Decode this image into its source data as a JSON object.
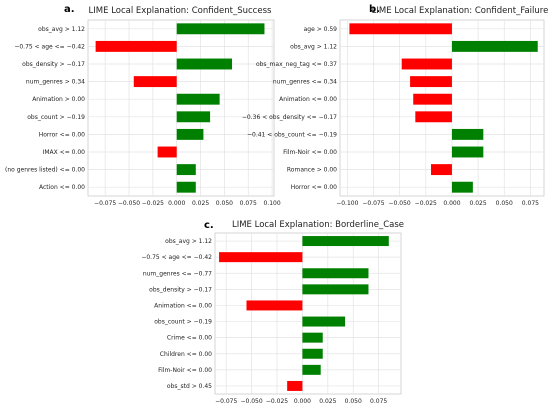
{
  "chart_data": [
    {
      "type": "bar",
      "orientation": "horizontal",
      "panel_label": "a.",
      "title": "LIME Local Explanation: Confident_Success",
      "categories": [
        "obs_avg > 1.12",
        "−0.75 < age <= −0.42",
        "obs_density > −0.17",
        "num_genres > 0.34",
        "Animation > 0.00",
        "obs_count > −0.19",
        "Horror <= 0.00",
        "IMAX <= 0.00",
        "(no genres listed) <= 0.00",
        "Action <= 0.00"
      ],
      "values": [
        0.092,
        -0.085,
        0.058,
        -0.045,
        0.045,
        0.035,
        0.028,
        -0.02,
        0.02,
        0.02
      ],
      "xticks": [
        -0.075,
        -0.05,
        -0.025,
        0.0,
        0.025,
        0.05,
        0.075,
        0.1
      ],
      "xtick_labels": [
        "−0.075",
        "−0.050",
        "−0.025",
        "0.000",
        "0.025",
        "0.050",
        "0.075",
        "0.100"
      ],
      "xlim": [
        -0.093,
        0.102
      ],
      "grid": true,
      "colors": {
        "positive": "#008000",
        "negative": "#ff0000"
      }
    },
    {
      "type": "bar",
      "orientation": "horizontal",
      "panel_label": "b.",
      "title": "LIME Local Explanation: Confident_Failure",
      "categories": [
        "age > 0.59",
        "obs_avg > 1.12",
        "obs_max_neg_tag <= 0.37",
        "num_genres <= 0.34",
        "Animation <= 0.00",
        "−0.36 < obs_density <= −0.17",
        "−0.41 < obs_count <= −0.19",
        "Film-Noir <= 0.00",
        "Romance > 0.00",
        "Horror <= 0.00"
      ],
      "values": [
        -0.098,
        0.082,
        -0.048,
        -0.04,
        -0.037,
        -0.035,
        0.03,
        0.03,
        -0.02,
        0.02
      ],
      "xticks": [
        -0.1,
        -0.075,
        -0.05,
        -0.025,
        0.0,
        0.025,
        0.05,
        0.075
      ],
      "xtick_labels": [
        "−0.100",
        "−0.075",
        "−0.050",
        "−0.025",
        "0.000",
        "0.025",
        "0.050",
        "0.075"
      ],
      "xlim": [
        -0.107,
        0.088
      ],
      "grid": true,
      "colors": {
        "positive": "#008000",
        "negative": "#ff0000"
      }
    },
    {
      "type": "bar",
      "orientation": "horizontal",
      "panel_label": "c.",
      "title": "LIME Local Explanation: Borderline_Case",
      "categories": [
        "obs_avg > 1.12",
        "−0.75 < age <= −0.42",
        "num_genres <= −0.77",
        "obs_density > −0.17",
        "Animation <= 0.00",
        "obs_count > −0.19",
        "Crime <= 0.00",
        "Children <= 0.00",
        "Film-Noir <= 0.00",
        "obs_std > 0.45"
      ],
      "values": [
        0.085,
        -0.082,
        0.065,
        0.065,
        -0.055,
        0.042,
        0.02,
        0.02,
        0.018,
        -0.015
      ],
      "xticks": [
        -0.075,
        -0.05,
        -0.025,
        0.0,
        0.025,
        0.05,
        0.075
      ],
      "xtick_labels": [
        "−0.075",
        "−0.050",
        "−0.025",
        "0.000",
        "0.025",
        "0.050",
        "0.075"
      ],
      "xlim": [
        -0.086,
        0.097
      ],
      "grid": true,
      "colors": {
        "positive": "#008000",
        "negative": "#ff0000"
      }
    }
  ]
}
